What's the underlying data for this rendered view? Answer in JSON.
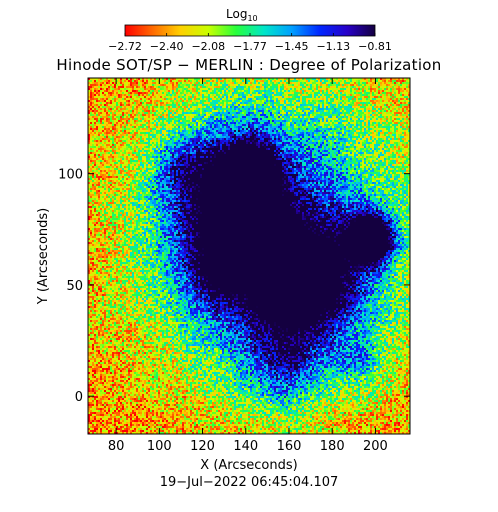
{
  "chart_data": {
    "type": "heatmap",
    "title": "Hinode SOT/SP − MERLIN : Degree of Polarization",
    "xlabel": "X (Arcseconds)",
    "ylabel": "Y (Arcseconds)",
    "timestamp": "19−Jul−2022 06:45:04.107",
    "xlim": [
      67,
      216
    ],
    "ylim": [
      -17,
      143
    ],
    "x_ticks": [
      80,
      100,
      120,
      140,
      160,
      180,
      200
    ],
    "y_ticks": [
      0,
      50,
      100
    ],
    "x_tick_labels": [
      "80",
      "100",
      "120",
      "140",
      "160",
      "180",
      "200"
    ],
    "y_tick_labels": [
      "0",
      "50",
      "100"
    ],
    "colorbar": {
      "title": "Log",
      "title_subscript": "10",
      "range": [
        -2.72,
        -0.81
      ],
      "tick_labels": [
        "−2.72",
        "−2.40",
        "−2.08",
        "−1.77",
        "−1.45",
        "−1.13",
        "−0.81"
      ],
      "colormap": [
        "#ff0000",
        "#ff6a00",
        "#ffd000",
        "#c8ff00",
        "#28ff3c",
        "#00e6c8",
        "#00a0ff",
        "#0028ff",
        "#2800c8",
        "#140040"
      ]
    },
    "grid": false
  }
}
